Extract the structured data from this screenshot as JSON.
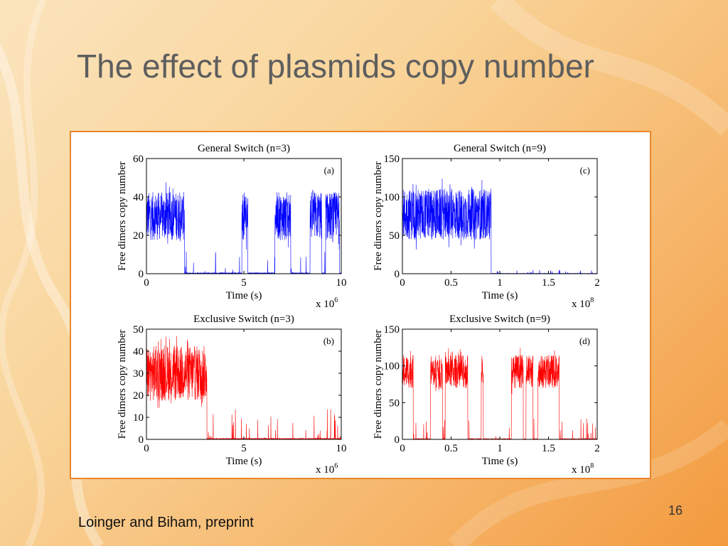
{
  "slide": {
    "title": "The effect of plasmids copy number",
    "footer": "Loinger and Biham, preprint",
    "number": "16",
    "accent_frame_color": "#e8862a"
  },
  "chart_data": [
    {
      "type": "line",
      "id": "a",
      "title": "General Switch (n=3)",
      "letter": "(a)",
      "xlabel": "Time (s)",
      "ylabel": "Free dimers copy number",
      "x_exponent_base": "x 10",
      "x_exponent": "6",
      "xlim": [
        0,
        10
      ],
      "ylim": [
        0,
        60
      ],
      "xticks": [
        "0",
        "5",
        "10"
      ],
      "yticks": [
        "0",
        "20",
        "40",
        "60"
      ],
      "xtick_values": [
        0,
        5,
        10
      ],
      "ytick_values": [
        0,
        20,
        40,
        60
      ],
      "color": "#0000ff",
      "series": [
        {
          "high_intervals": [
            [
              0,
              1.95
            ],
            [
              4.9,
              5.2
            ],
            [
              6.6,
              7.4
            ],
            [
              8.4,
              9.0
            ],
            [
              9.2,
              9.9
            ]
          ],
          "high_mean": 27,
          "high_min": 12,
          "high_max": 48,
          "low_mean": 0.5,
          "low_max": 12
        }
      ]
    },
    {
      "type": "line",
      "id": "c",
      "title": "General Switch (n=9)",
      "letter": "(c)",
      "xlabel": "Time (s)",
      "ylabel": "Free dimers copy number",
      "x_exponent_base": "x 10",
      "x_exponent": "8",
      "xlim": [
        0,
        2
      ],
      "ylim": [
        0,
        150
      ],
      "xticks": [
        "0",
        "0.5",
        "1",
        "1.5",
        "2"
      ],
      "yticks": [
        "0",
        "50",
        "100",
        "150"
      ],
      "xtick_values": [
        0,
        0.5,
        1,
        1.5,
        2
      ],
      "ytick_values": [
        0,
        50,
        100,
        150
      ],
      "color": "#0000ff",
      "series": [
        {
          "high_intervals": [
            [
              0,
              0.91
            ]
          ],
          "high_mean": 82,
          "high_min": 30,
          "high_max": 125,
          "low_mean": 0.5,
          "low_max": 5
        }
      ]
    },
    {
      "type": "line",
      "id": "b",
      "title": "Exclusive Switch (n=3)",
      "letter": "(b)",
      "xlabel": "Time (s)",
      "ylabel": "Free dimers copy number",
      "x_exponent_base": "x 10",
      "x_exponent": "6",
      "xlim": [
        0,
        10
      ],
      "ylim": [
        0,
        50
      ],
      "xticks": [
        "0",
        "5",
        "10"
      ],
      "yticks": [
        "0",
        "10",
        "20",
        "30",
        "40",
        "50"
      ],
      "xtick_values": [
        0,
        5,
        10
      ],
      "ytick_values": [
        0,
        10,
        20,
        30,
        40,
        50
      ],
      "color": "#ff0000",
      "series": [
        {
          "high_intervals": [
            [
              0,
              3.1
            ]
          ],
          "high_mean": 29,
          "high_min": 12,
          "high_max": 48,
          "low_mean": 0.5,
          "low_max": 14
        }
      ]
    },
    {
      "type": "line",
      "id": "d",
      "title": "Exclusive Switch (n=9)",
      "letter": "(d)",
      "xlabel": "Time (s)",
      "ylabel": "Free dimers copy number",
      "x_exponent_base": "x 10",
      "x_exponent": "8",
      "xlim": [
        0,
        2
      ],
      "ylim": [
        0,
        150
      ],
      "xticks": [
        "0",
        "0.5",
        "1",
        "1.5",
        "2"
      ],
      "yticks": [
        "0",
        "50",
        "100",
        "150"
      ],
      "xtick_values": [
        0,
        0.5,
        1,
        1.5,
        2
      ],
      "ytick_values": [
        0,
        50,
        100,
        150
      ],
      "color": "#ff0000",
      "series": [
        {
          "high_intervals": [
            [
              0,
              0.11
            ],
            [
              0.29,
              0.41
            ],
            [
              0.44,
              0.67
            ],
            [
              0.81,
              0.83
            ],
            [
              1.12,
              1.24
            ],
            [
              1.27,
              1.34
            ],
            [
              1.39,
              1.61
            ]
          ],
          "high_mean": 90,
          "high_min": 60,
          "high_max": 125,
          "low_mean": 1,
          "low_max": 30
        }
      ]
    }
  ]
}
